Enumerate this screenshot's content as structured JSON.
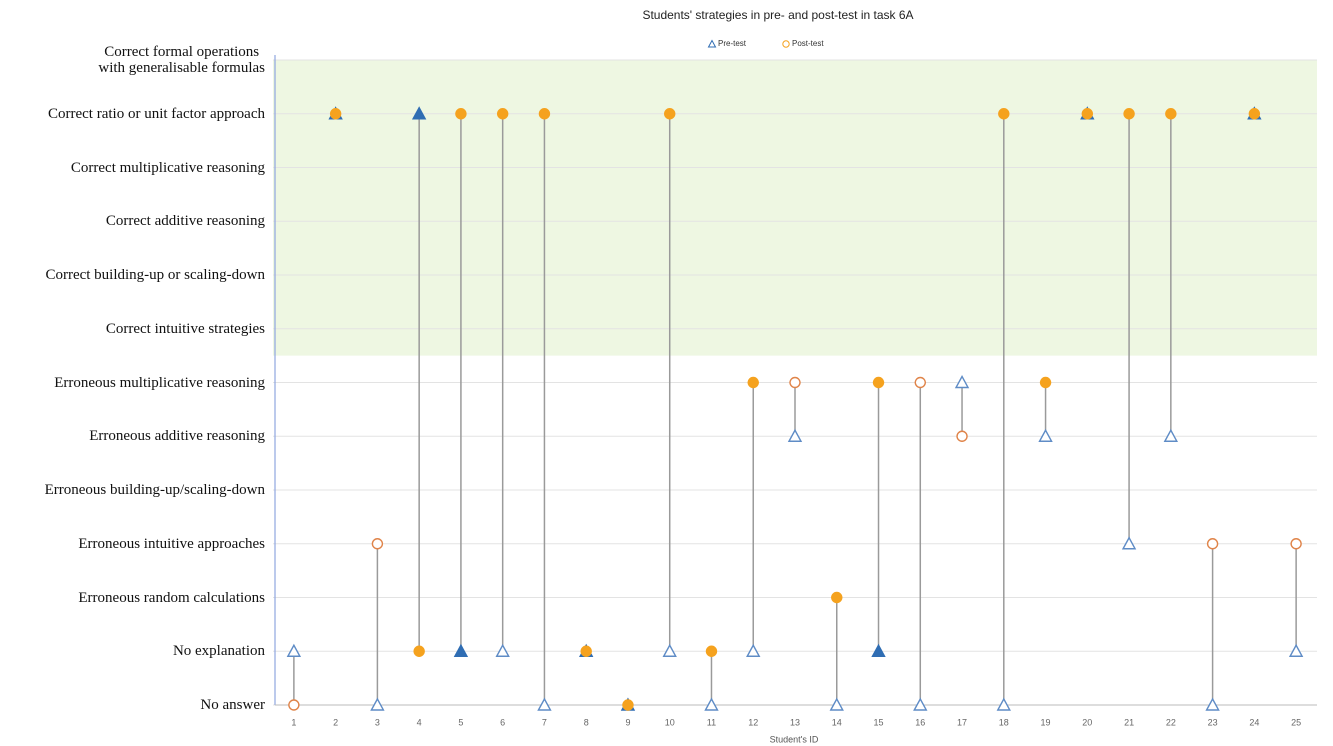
{
  "chart_data": {
    "type": "dumbbell",
    "title": "Students' strategies in pre- and post-test in task 6A",
    "x_label": "Student's ID",
    "x": [
      1,
      2,
      3,
      4,
      5,
      6,
      7,
      8,
      9,
      10,
      11,
      12,
      13,
      14,
      15,
      16,
      17,
      18,
      19,
      20,
      21,
      22,
      23,
      24,
      25
    ],
    "xlim": [
      0.5,
      25.5
    ],
    "xticks": [
      1,
      2,
      3,
      4,
      5,
      6,
      7,
      8,
      9,
      10,
      11,
      12,
      13,
      14,
      15,
      16,
      17,
      18,
      19,
      20,
      21,
      22,
      23,
      24,
      25
    ],
    "ylim": [
      0,
      12
    ],
    "yticks": [
      {
        "value": 0,
        "label": "No answer"
      },
      {
        "value": 1,
        "label": "No explanation"
      },
      {
        "value": 2,
        "label": "Erroneous random calculations"
      },
      {
        "value": 3,
        "label": "Erroneous intuitive approaches"
      },
      {
        "value": 4,
        "label": "Erroneous building-up/scaling-down"
      },
      {
        "value": 5,
        "label": "Erroneous additive reasoning"
      },
      {
        "value": 6,
        "label": "Erroneous multiplicative reasoning"
      },
      {
        "value": 7,
        "label": "Correct intuitive strategies"
      },
      {
        "value": 8,
        "label": "Correct building-up or scaling-down"
      },
      {
        "value": 9,
        "label": "Correct additive reasoning"
      },
      {
        "value": 10,
        "label": "Correct multiplicative reasoning"
      },
      {
        "value": 11,
        "label": "Correct ratio or unit factor approach"
      },
      {
        "value": 12,
        "label": "Correct formal operations\nwith generalisable formulas"
      }
    ],
    "grid": true,
    "shaded_range": [
      6.5,
      12
    ],
    "shade_color": "#eef7e2",
    "connector_color": "#9a9a9a",
    "legend_position": "top",
    "series": [
      {
        "name": "Pre-test",
        "marker": "triangle",
        "color": "#2f6db3",
        "values": [
          1,
          11,
          0,
          11,
          1,
          1,
          0,
          1,
          0,
          1,
          0,
          1,
          5,
          0,
          1,
          0,
          6,
          0,
          5,
          11,
          3,
          5,
          0,
          11,
          1
        ],
        "filled": [
          false,
          true,
          false,
          true,
          true,
          false,
          false,
          true,
          true,
          false,
          false,
          false,
          false,
          false,
          true,
          false,
          false,
          false,
          false,
          true,
          false,
          false,
          false,
          true,
          false
        ]
      },
      {
        "name": "Post-test",
        "marker": "circle",
        "color": "#f5a21e",
        "values": [
          0,
          11,
          3,
          1,
          11,
          11,
          11,
          1,
          0,
          11,
          1,
          6,
          6,
          2,
          6,
          6,
          5,
          11,
          6,
          11,
          11,
          11,
          3,
          11,
          3
        ],
        "filled": [
          false,
          true,
          false,
          true,
          true,
          true,
          true,
          true,
          true,
          true,
          true,
          true,
          false,
          true,
          true,
          false,
          false,
          true,
          true,
          true,
          true,
          true,
          false,
          true,
          false
        ]
      }
    ]
  }
}
